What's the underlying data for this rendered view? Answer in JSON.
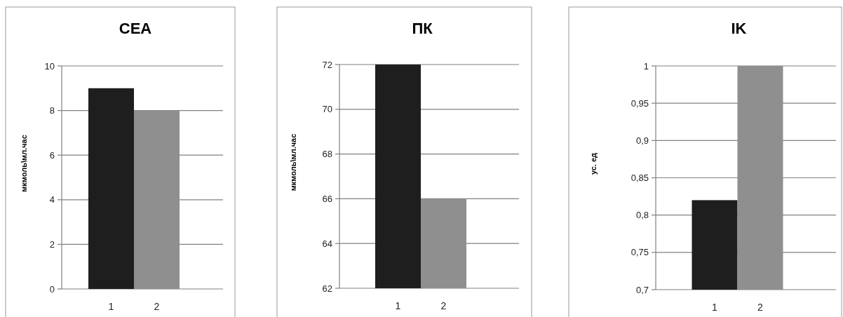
{
  "chart_data": [
    {
      "type": "bar",
      "title": "CEA",
      "ylabel": "мкмоль\\мл.час",
      "categories": [
        "1",
        "2"
      ],
      "values": [
        9,
        8
      ],
      "colors": [
        "#1e1e1e",
        "#8f8f8f"
      ],
      "ylim": [
        0,
        10
      ],
      "yticks": [
        0,
        2,
        4,
        6,
        8,
        10
      ],
      "grid": "y"
    },
    {
      "type": "bar",
      "title": "ПК",
      "ylabel": "мкмоль\\мл.час",
      "categories": [
        "1",
        "2"
      ],
      "values": [
        72,
        66
      ],
      "colors": [
        "#1e1e1e",
        "#8f8f8f"
      ],
      "ylim": [
        62,
        72
      ],
      "yticks": [
        62,
        64,
        66,
        68,
        70,
        72
      ],
      "grid": "y"
    },
    {
      "type": "bar",
      "title": "IK",
      "ylabel": "ус. ед",
      "categories": [
        "1",
        "2"
      ],
      "values": [
        0.82,
        1
      ],
      "colors": [
        "#1e1e1e",
        "#8f8f8f"
      ],
      "ylim": [
        0.7,
        1
      ],
      "yticks": [
        {
          "value": 0.7,
          "label": "0,7"
        },
        {
          "value": 0.75,
          "label": "0,75"
        },
        {
          "value": 0.8,
          "label": "0,8"
        },
        {
          "value": 0.85,
          "label": "0,85"
        },
        {
          "value": 0.9,
          "label": "0,9"
        },
        {
          "value": 0.95,
          "label": "0,95"
        },
        {
          "value": 1,
          "label": "1"
        }
      ],
      "grid": "y"
    }
  ]
}
